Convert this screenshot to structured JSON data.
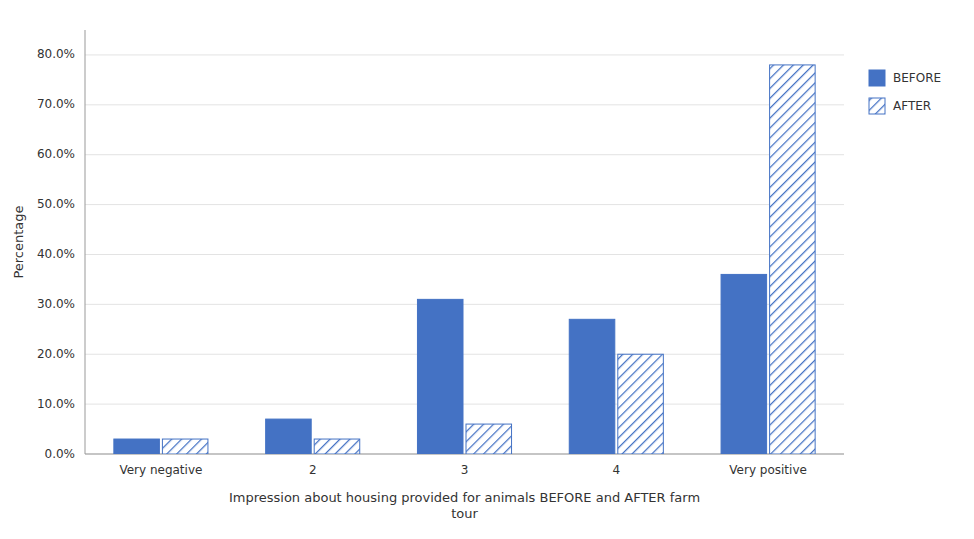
{
  "chart_data": {
    "type": "bar",
    "categories": [
      "Very negative",
      "2",
      "3",
      "4",
      "Very positive"
    ],
    "series": [
      {
        "name": "BEFORE",
        "color": "#4472C4",
        "values": [
          0.03,
          0.07,
          0.31,
          0.27,
          0.36
        ]
      },
      {
        "name": "AFTER",
        "color": "#4472C4",
        "values": [
          0.03,
          0.03,
          0.06,
          0.2,
          0.78
        ]
      }
    ],
    "x_label": "Impression about housing provided for animals BEFORE and AFTER farm\ntour",
    "y_label": "Percentage",
    "ylim": [
      0,
      0.85
    ],
    "yticks": [
      {
        "value": 0.0,
        "label": "0.0%"
      },
      {
        "value": 0.1,
        "label": "10.0%"
      },
      {
        "value": 0.2,
        "label": "20.0%"
      },
      {
        "value": 0.3,
        "label": "30.0%"
      },
      {
        "value": 0.4,
        "label": "40.0%"
      },
      {
        "value": 0.5,
        "label": "50.0%"
      },
      {
        "value": 0.6,
        "label": "60.0%"
      },
      {
        "value": 0.7,
        "label": "70.0%"
      },
      {
        "value": 0.8,
        "label": "80.0%"
      }
    ],
    "grid": true,
    "legend": "right"
  }
}
